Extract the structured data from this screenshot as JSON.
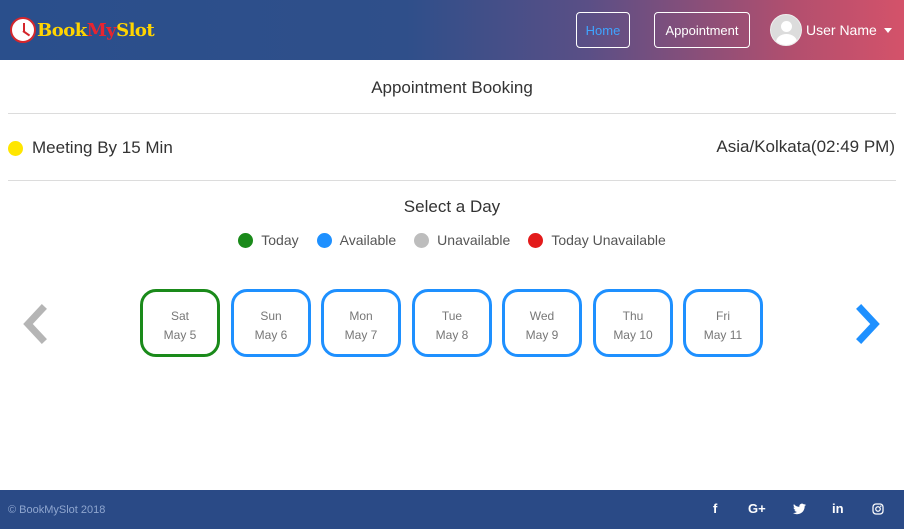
{
  "brand": {
    "part1": "Book",
    "part2": "My",
    "part3": "Slot"
  },
  "nav": {
    "home": "Home",
    "appointment": "Appointment",
    "user_name": "User Name"
  },
  "main": {
    "title": "Appointment Booking",
    "meeting": "Meeting By 15 Min",
    "timezone": "Asia/Kolkata(02:49 PM)",
    "select_title": "Select a Day",
    "legend": [
      {
        "label": "Today",
        "color": "#1a8a1a"
      },
      {
        "label": "Available",
        "color": "#1e90ff"
      },
      {
        "label": "Unavailable",
        "color": "#bdbdbd"
      },
      {
        "label": "Today Unavailable",
        "color": "#e31b1b"
      }
    ],
    "days": [
      {
        "day": "Sat",
        "date": "May 5",
        "status": "today"
      },
      {
        "day": "Sun",
        "date": "May 6",
        "status": "available"
      },
      {
        "day": "Mon",
        "date": "May 7",
        "status": "available"
      },
      {
        "day": "Tue",
        "date": "May 8",
        "status": "available"
      },
      {
        "day": "Wed",
        "date": "May 9",
        "status": "available"
      },
      {
        "day": "Thu",
        "date": "May 10",
        "status": "available"
      },
      {
        "day": "Fri",
        "date": "May 11",
        "status": "available"
      }
    ]
  },
  "footer": {
    "copyright": "© BookMySlot 2018",
    "social": [
      {
        "name": "facebook-icon",
        "glyph": "f"
      },
      {
        "name": "google-plus-icon",
        "glyph": "G+"
      },
      {
        "name": "twitter-icon",
        "glyph": "🐦"
      },
      {
        "name": "linkedin-icon",
        "glyph": "in"
      },
      {
        "name": "instagram-icon",
        "glyph": "◎"
      }
    ]
  },
  "colors": {
    "accent": "#1e90ff",
    "today": "#1a8a1a",
    "footer": "#2a4a86",
    "meeting_dot": "#ffe600"
  }
}
